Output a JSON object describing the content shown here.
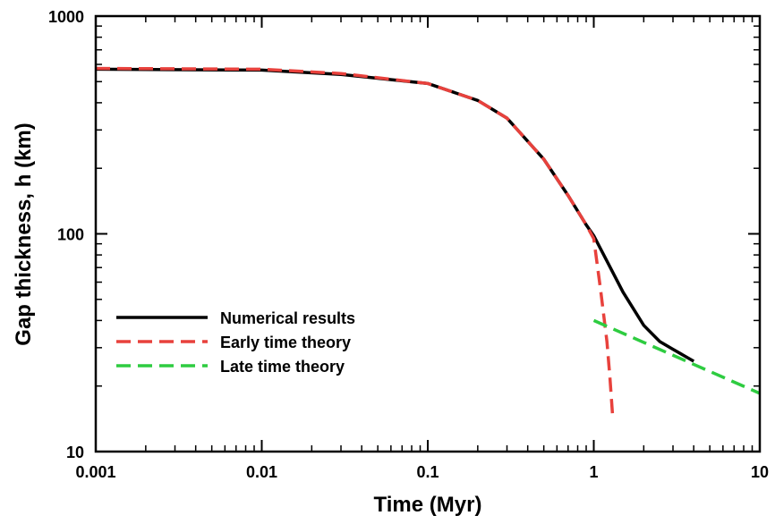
{
  "chart_data": {
    "type": "line",
    "x_label": "Time (Myr)",
    "y_label": "Gap thickness, h (km)",
    "xlog": true,
    "ylog": true,
    "xlim": [
      0.001,
      10
    ],
    "ylim": [
      10,
      1000
    ],
    "xticks": [
      0.001,
      0.01,
      0.1,
      1,
      10
    ],
    "yticks": [
      10,
      100,
      1000
    ],
    "legend": "center-left",
    "series": [
      {
        "name": "Numerical results",
        "color": "#000000",
        "dashed": false,
        "x": [
          0.001,
          0.01,
          0.03,
          0.1,
          0.2,
          0.3,
          0.5,
          0.7,
          0.9,
          1,
          1.2,
          1.5,
          2,
          2.5,
          3,
          4
        ],
        "values": [
          570,
          565,
          540,
          490,
          410,
          340,
          220,
          150,
          110,
          98,
          75,
          54,
          38,
          32,
          29.5,
          26
        ]
      },
      {
        "name": "Early time theory",
        "color": "#e8413c",
        "dashed": true,
        "x": [
          0.001,
          0.01,
          0.03,
          0.1,
          0.2,
          0.3,
          0.5,
          0.7,
          0.9,
          1,
          1.1,
          1.2,
          1.25,
          1.3
        ],
        "values": [
          575,
          570,
          545,
          490,
          410,
          340,
          220,
          150,
          110,
          95,
          55,
          32,
          22,
          14.5
        ]
      },
      {
        "name": "Late time theory",
        "color": "#2ecc40",
        "dashed": true,
        "x": [
          1,
          10
        ],
        "values": [
          40,
          18.5
        ]
      }
    ]
  }
}
